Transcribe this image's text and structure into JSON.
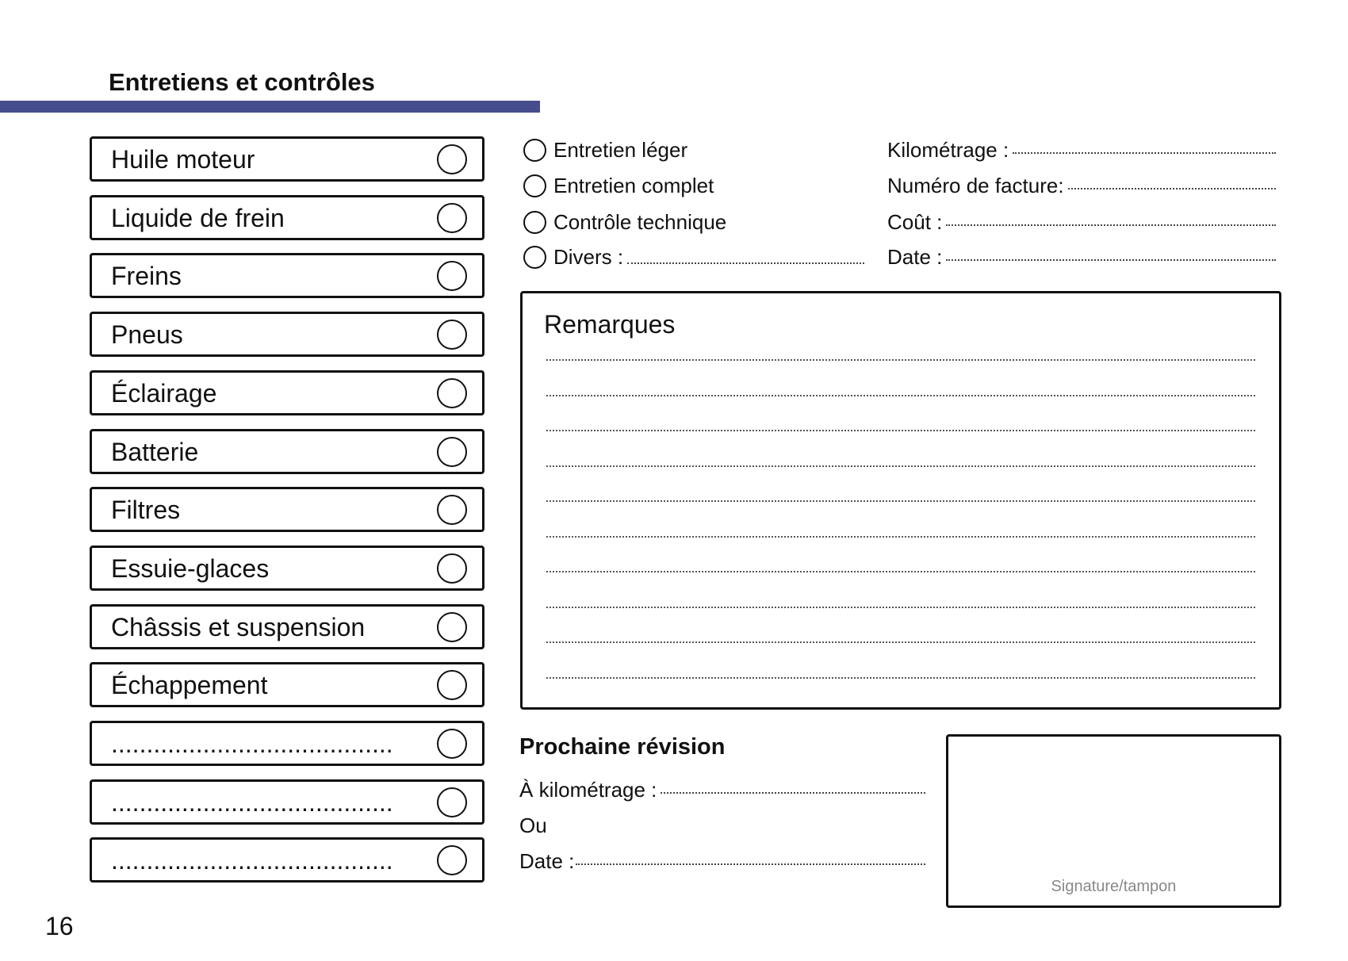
{
  "header": {
    "title": "Entretiens et contrôles",
    "accent_color": "#454d8c"
  },
  "checklist": [
    {
      "label": "Huile moteur"
    },
    {
      "label": "Liquide de frein"
    },
    {
      "label": "Freins"
    },
    {
      "label": "Pneus"
    },
    {
      "label": "Éclairage"
    },
    {
      "label": "Batterie"
    },
    {
      "label": "Filtres"
    },
    {
      "label": "Essuie-glaces"
    },
    {
      "label": "Châssis et suspension"
    },
    {
      "label": "Échappement"
    },
    {
      "label": "........................................"
    },
    {
      "label": "........................................"
    },
    {
      "label": "........................................"
    }
  ],
  "service_type": {
    "options": [
      {
        "label": "Entretien léger"
      },
      {
        "label": "Entretien complet"
      },
      {
        "label": "Contrôle technique"
      },
      {
        "label": "Divers :"
      }
    ]
  },
  "details": {
    "fields": [
      {
        "label": "Kilométrage :"
      },
      {
        "label": "Numéro de facture:"
      },
      {
        "label": "Coût :"
      },
      {
        "label": "Date :"
      }
    ]
  },
  "remarks": {
    "title": "Remarques",
    "line_count": 10
  },
  "next_service": {
    "title": "Prochaine révision",
    "mileage_label": "À kilométrage :",
    "or_label": "Ou",
    "date_label": "Date :"
  },
  "signature": {
    "label": "Signature/tampon"
  },
  "page_number": "16"
}
